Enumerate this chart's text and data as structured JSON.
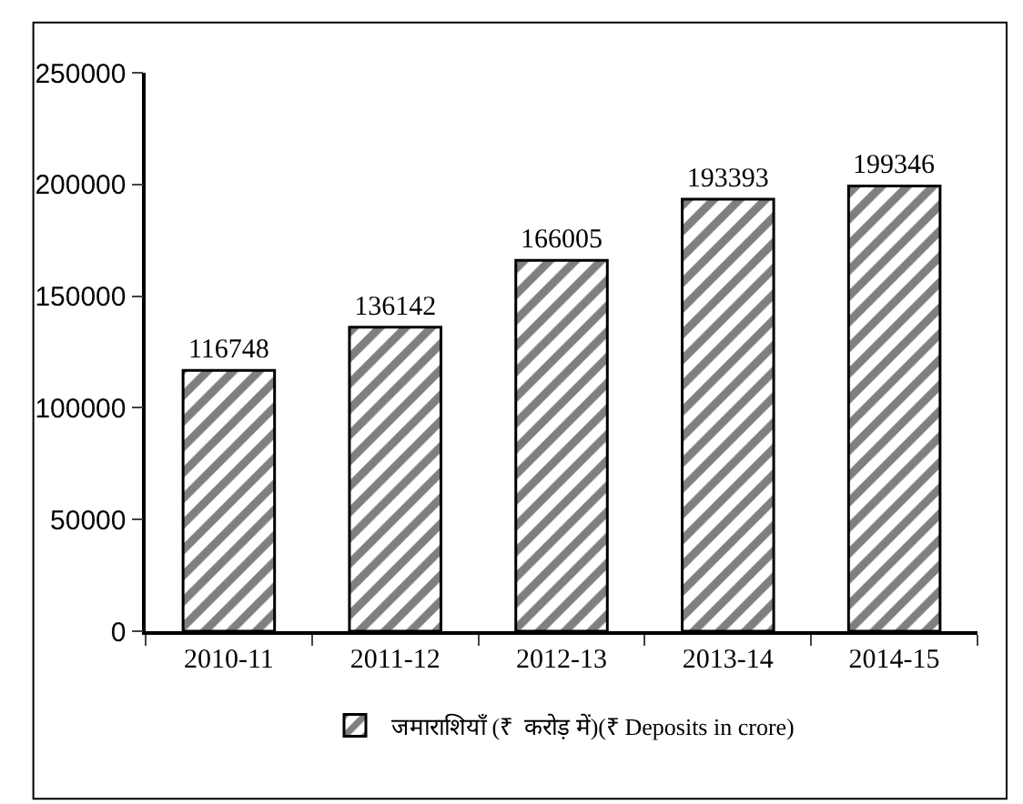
{
  "chart_data": {
    "type": "bar",
    "categories": [
      "2010-11",
      "2011-12",
      "2012-13",
      "2013-14",
      "2014-15"
    ],
    "series": [
      {
        "name": "जमाराशियाँ (₹  करोड़ में)(₹ Deposits in crore)",
        "color": "#000000",
        "values": [
          116748,
          136142,
          166005,
          193393,
          199346
        ]
      }
    ],
    "ylim": [
      0,
      250000
    ],
    "yticks": [
      0,
      50000,
      100000,
      150000,
      200000,
      250000
    ],
    "data_labels": true,
    "legend": "bottom",
    "grid": false
  }
}
